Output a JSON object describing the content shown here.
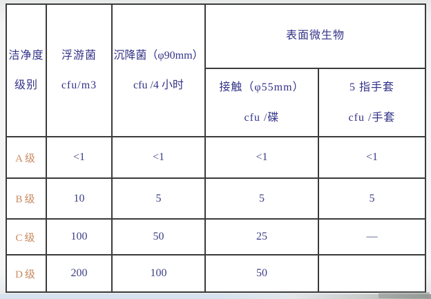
{
  "page": {
    "background_color": "#eceded",
    "table_border_color": "#3a3a3a",
    "header_text_color": "#333388",
    "value_text_color": "#3d3d85",
    "row_label_color": "#c9895f"
  },
  "table": {
    "headers": {
      "cleanliness_level": "洁净度\n级别",
      "airborne_bacteria": "浮游菌\ncfu/m3",
      "settling_bacteria": "沉降菌（φ90mm）\ncfu /4 小时",
      "surface_microorganisms": "表面微生物",
      "contact_plate": "接触（φ55mm）\ncfu /碟",
      "five_finger_glove": "5 指手套\ncfu /手套"
    },
    "rows": [
      {
        "label": "A级",
        "values": [
          "<1",
          "<1",
          "<1",
          "<1"
        ]
      },
      {
        "label": "B级",
        "values": [
          "10",
          "5",
          "5",
          "5"
        ]
      },
      {
        "label": "C级",
        "values": [
          "100",
          "50",
          "25",
          "—"
        ]
      },
      {
        "label": "D级",
        "values": [
          "200",
          "100",
          "50",
          ""
        ]
      }
    ]
  }
}
